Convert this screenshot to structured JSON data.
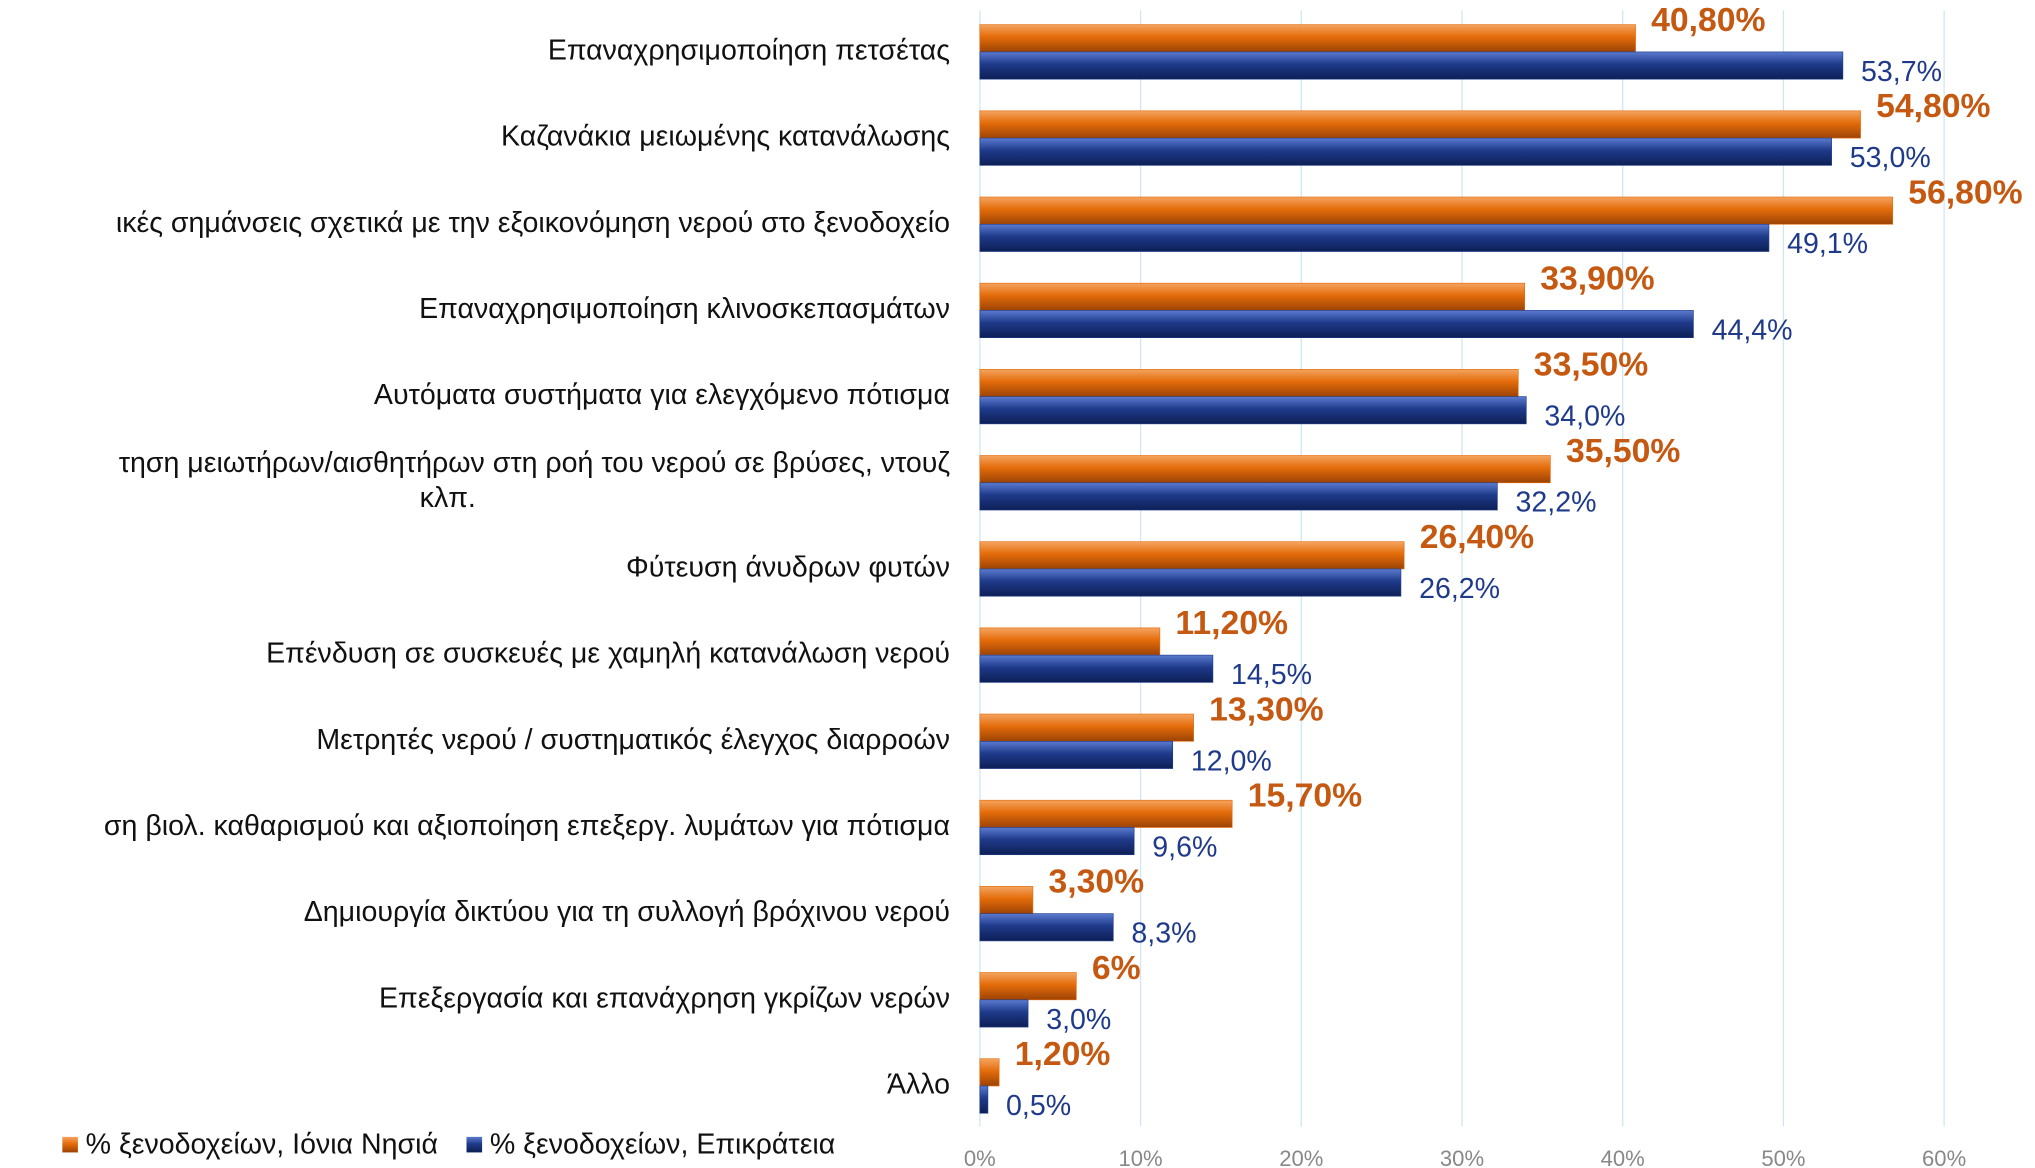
{
  "chart_data": {
    "type": "hbar",
    "categories": [
      "Επαναχρησιμοποίηση πετσέτας",
      "Καζανάκια μειωμένης κατανάλωσης",
      "ικές σημάνσεις σχετικά με την εξοικονόμηση νερού στο ξενοδοχείο",
      "Επαναχρησιμοποίηση κλινοσκεπασμάτων",
      "Αυτόματα συστήματα για ελεγχόμενο πότισμα",
      [
        "τηση μειωτήρων/αισθητήρων στη ροή του νερού σε βρύσες, ντουζ",
        "κλπ."
      ],
      "Φύτευση άνυδρων φυτών",
      "Επένδυση σε συσκευές με χαμηλή κατανάλωση νερού",
      "Μετρητές νερού / συστηματικός έλεγχος διαρροών",
      "ση βιολ. καθαρισμού και αξιοποίηση επεξεργ. λυμάτων για πότισμα",
      "Δημιουργία δικτύου για τη συλλογή βρόχινου νερού",
      "Επεξεργασία και επανάχρηση γκρίζων νερών",
      "Άλλο"
    ],
    "series": [
      {
        "name": "% ξενοδοχείων, Ιόνια Νησιά",
        "color": "#e46c0a",
        "values": [
          40.8,
          54.8,
          56.8,
          33.9,
          33.5,
          35.5,
          26.4,
          11.2,
          13.3,
          15.7,
          3.3,
          6,
          1.2
        ],
        "value_labels": [
          "40,80%",
          "54,80%",
          "56,80%",
          "33,90%",
          "33,50%",
          "35,50%",
          "26,40%",
          "11,20%",
          "13,30%",
          "15,70%",
          "3,30%",
          "6%",
          "1,20%"
        ]
      },
      {
        "name": "% ξενοδοχείων, Επικράτεια",
        "color": "#1f3a8a",
        "values": [
          53.7,
          53.0,
          49.1,
          44.4,
          34.0,
          32.2,
          26.2,
          14.5,
          12.0,
          9.6,
          8.3,
          3.0,
          0.5
        ],
        "value_labels": [
          "53,7%",
          "53,0%",
          "49,1%",
          "44,4%",
          "34,0%",
          "32,2%",
          "26,2%",
          "14,5%",
          "12,0%",
          "9,6%",
          "8,3%",
          "3,0%",
          "0,5%"
        ]
      }
    ],
    "xlim": [
      0,
      60
    ],
    "xticks": [
      {
        "value": 0,
        "label": "0%"
      },
      {
        "value": 10,
        "label": "10%"
      },
      {
        "value": 20,
        "label": "20%"
      },
      {
        "value": 30,
        "label": "30%"
      },
      {
        "value": 40,
        "label": "40%"
      },
      {
        "value": 50,
        "label": "50%"
      },
      {
        "value": 60,
        "label": "60%"
      }
    ],
    "grid": true
  }
}
